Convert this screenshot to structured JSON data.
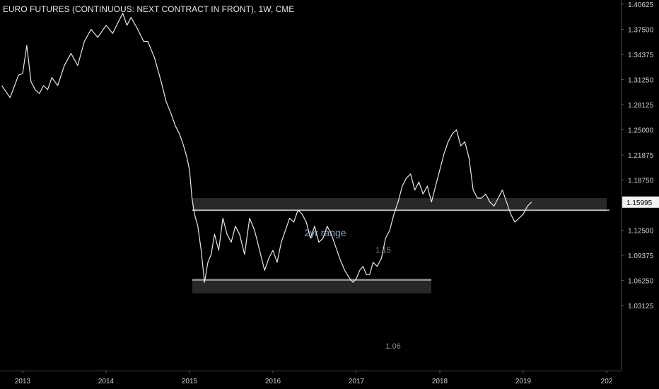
{
  "chart_data": {
    "type": "line",
    "title": "EURO FUTURES (CONTINUOUS: NEXT CONTRACT IN FRONT), 1W, CME",
    "xlabel": "",
    "ylabel": "",
    "x_ticks": [
      "2013",
      "2014",
      "2015",
      "2016",
      "2017",
      "2018",
      "2019",
      "202"
    ],
    "y_ticks": [
      "1.40625",
      "1.37500",
      "1.34375",
      "1.31250",
      "1.28125",
      "1.25000",
      "1.21875",
      "1.18750",
      "1.15995",
      "1.12500",
      "1.09375",
      "1.06250",
      "1.03125"
    ],
    "ylim": [
      1.03125,
      1.40625
    ],
    "last_price_label": "1.15995",
    "last_price": 1.15995,
    "grid": false,
    "series": [
      {
        "color": "#e8e8e8",
        "x": [
          2012.75,
          2012.85,
          2012.95,
          2013.0,
          2013.05,
          2013.1,
          2013.15,
          2013.2,
          2013.25,
          2013.3,
          2013.35,
          2013.42,
          2013.5,
          2013.58,
          2013.66,
          2013.74,
          2013.82,
          2013.9,
          2014.0,
          2014.08,
          2014.15,
          2014.2,
          2014.25,
          2014.3,
          2014.38,
          2014.45,
          2014.5,
          2014.58,
          2014.66,
          2014.72,
          2014.78,
          2014.83,
          2014.88,
          2014.93,
          2014.97,
          2015.0,
          2015.03,
          2015.06,
          2015.1,
          2015.14,
          2015.18,
          2015.22,
          2015.26,
          2015.3,
          2015.35,
          2015.4,
          2015.45,
          2015.5,
          2015.55,
          2015.6,
          2015.66,
          2015.72,
          2015.78,
          2015.84,
          2015.9,
          2015.95,
          2016.0,
          2016.05,
          2016.1,
          2016.15,
          2016.2,
          2016.25,
          2016.3,
          2016.35,
          2016.4,
          2016.45,
          2016.5,
          2016.55,
          2016.6,
          2016.65,
          2016.7,
          2016.75,
          2016.8,
          2016.86,
          2016.92,
          2016.96,
          2017.0,
          2017.04,
          2017.08,
          2017.12,
          2017.16,
          2017.2,
          2017.25,
          2017.3,
          2017.35,
          2017.4,
          2017.45,
          2017.5,
          2017.55,
          2017.6,
          2017.65,
          2017.7,
          2017.75,
          2017.8,
          2017.85,
          2017.9,
          2017.95,
          2018.0,
          2018.05,
          2018.1,
          2018.15,
          2018.2,
          2018.25,
          2018.3,
          2018.35,
          2018.4,
          2018.45,
          2018.5,
          2018.55,
          2018.6,
          2018.65,
          2018.7,
          2018.75,
          2018.8,
          2018.85,
          2018.9,
          2018.95,
          2019.0,
          2019.05,
          2019.1
        ],
        "y": [
          1.305,
          1.29,
          1.318,
          1.32,
          1.355,
          1.31,
          1.3,
          1.295,
          1.305,
          1.3,
          1.315,
          1.305,
          1.33,
          1.345,
          1.33,
          1.36,
          1.375,
          1.365,
          1.38,
          1.37,
          1.385,
          1.395,
          1.38,
          1.39,
          1.375,
          1.36,
          1.36,
          1.34,
          1.31,
          1.285,
          1.27,
          1.255,
          1.245,
          1.23,
          1.215,
          1.2,
          1.165,
          1.145,
          1.13,
          1.1,
          1.06,
          1.085,
          1.095,
          1.12,
          1.1,
          1.14,
          1.12,
          1.11,
          1.13,
          1.12,
          1.095,
          1.14,
          1.125,
          1.1,
          1.075,
          1.09,
          1.1,
          1.085,
          1.11,
          1.125,
          1.14,
          1.135,
          1.15,
          1.145,
          1.135,
          1.115,
          1.13,
          1.11,
          1.115,
          1.13,
          1.12,
          1.105,
          1.09,
          1.075,
          1.065,
          1.06,
          1.065,
          1.075,
          1.08,
          1.07,
          1.07,
          1.085,
          1.08,
          1.09,
          1.115,
          1.125,
          1.145,
          1.16,
          1.18,
          1.19,
          1.195,
          1.175,
          1.185,
          1.17,
          1.18,
          1.16,
          1.18,
          1.2,
          1.22,
          1.235,
          1.245,
          1.25,
          1.23,
          1.235,
          1.215,
          1.175,
          1.165,
          1.165,
          1.17,
          1.16,
          1.155,
          1.165,
          1.175,
          1.16,
          1.145,
          1.135,
          1.14,
          1.145,
          1.155,
          1.16
        ]
      }
    ],
    "annotations": [
      {
        "text": "2yr range",
        "type": "label",
        "color": "#8aa0b8"
      },
      {
        "text": "1.15",
        "type": "zone-label",
        "color": "#8a8a8a"
      },
      {
        "text": "1.06",
        "type": "zone-label",
        "color": "#8a8a8a"
      }
    ]
  }
}
